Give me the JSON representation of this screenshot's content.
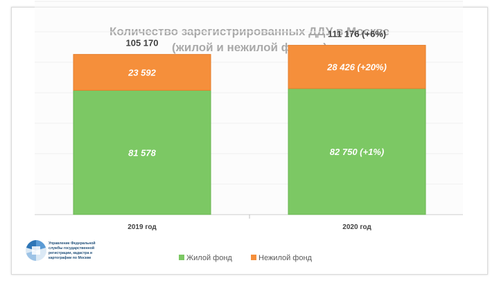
{
  "chart_data": {
    "type": "bar",
    "stacked": true,
    "title": "Количество зарегистрированных ДДУ в Москве",
    "subtitle": "(жилой и нежилой фонды)",
    "categories": [
      "2019 год",
      "2020 год"
    ],
    "series": [
      {
        "name": "Жилой фонд",
        "color": "#7cc864",
        "values": [
          81578,
          82750
        ],
        "labels": [
          "81 578",
          "82 750 (+1%)"
        ]
      },
      {
        "name": "Нежилой фонд",
        "color": "#f58f3b",
        "values": [
          23592,
          28426
        ],
        "labels": [
          "23 592",
          "28 426 (+20%)"
        ]
      }
    ],
    "totals": [
      105170,
      111176
    ],
    "total_labels": [
      "105 170",
      "111 176 (+6%)"
    ],
    "ylim": [
      0,
      140000
    ],
    "grid": true,
    "legend": "bottom"
  },
  "logo": {
    "lines": [
      "Управление Федеральной",
      "службы государственной",
      "регистрации, кадастра и",
      "картографии по Москве"
    ]
  }
}
